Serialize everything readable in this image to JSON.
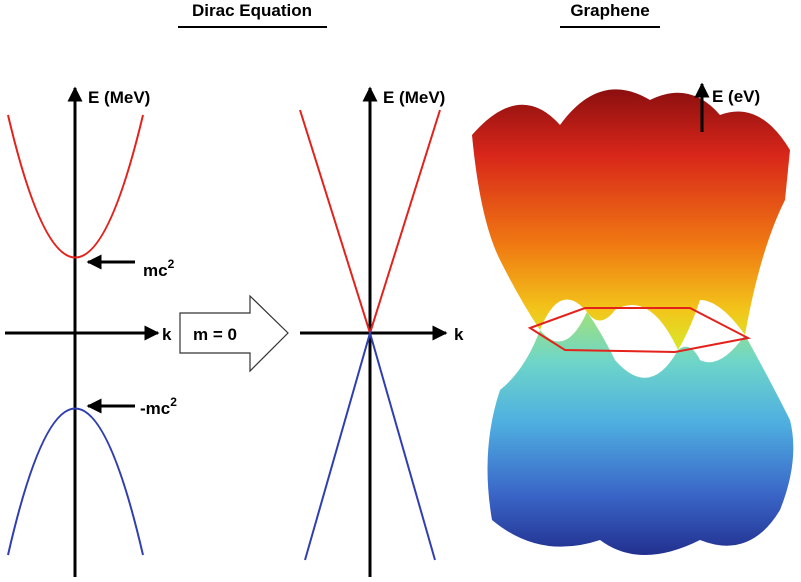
{
  "titles": {
    "left": "Dirac Equation",
    "right": "Graphene"
  },
  "massive": {
    "axis_y": "E (MeV)",
    "axis_x": "k",
    "upper": {
      "base": "mc",
      "sup": "2"
    },
    "lower": {
      "base": "-mc",
      "sup": "2"
    }
  },
  "transition": "m = 0",
  "massless": {
    "axis_y": "E (MeV)",
    "axis_x": "k"
  },
  "graphene": {
    "axis_y": "E (eV)"
  }
}
